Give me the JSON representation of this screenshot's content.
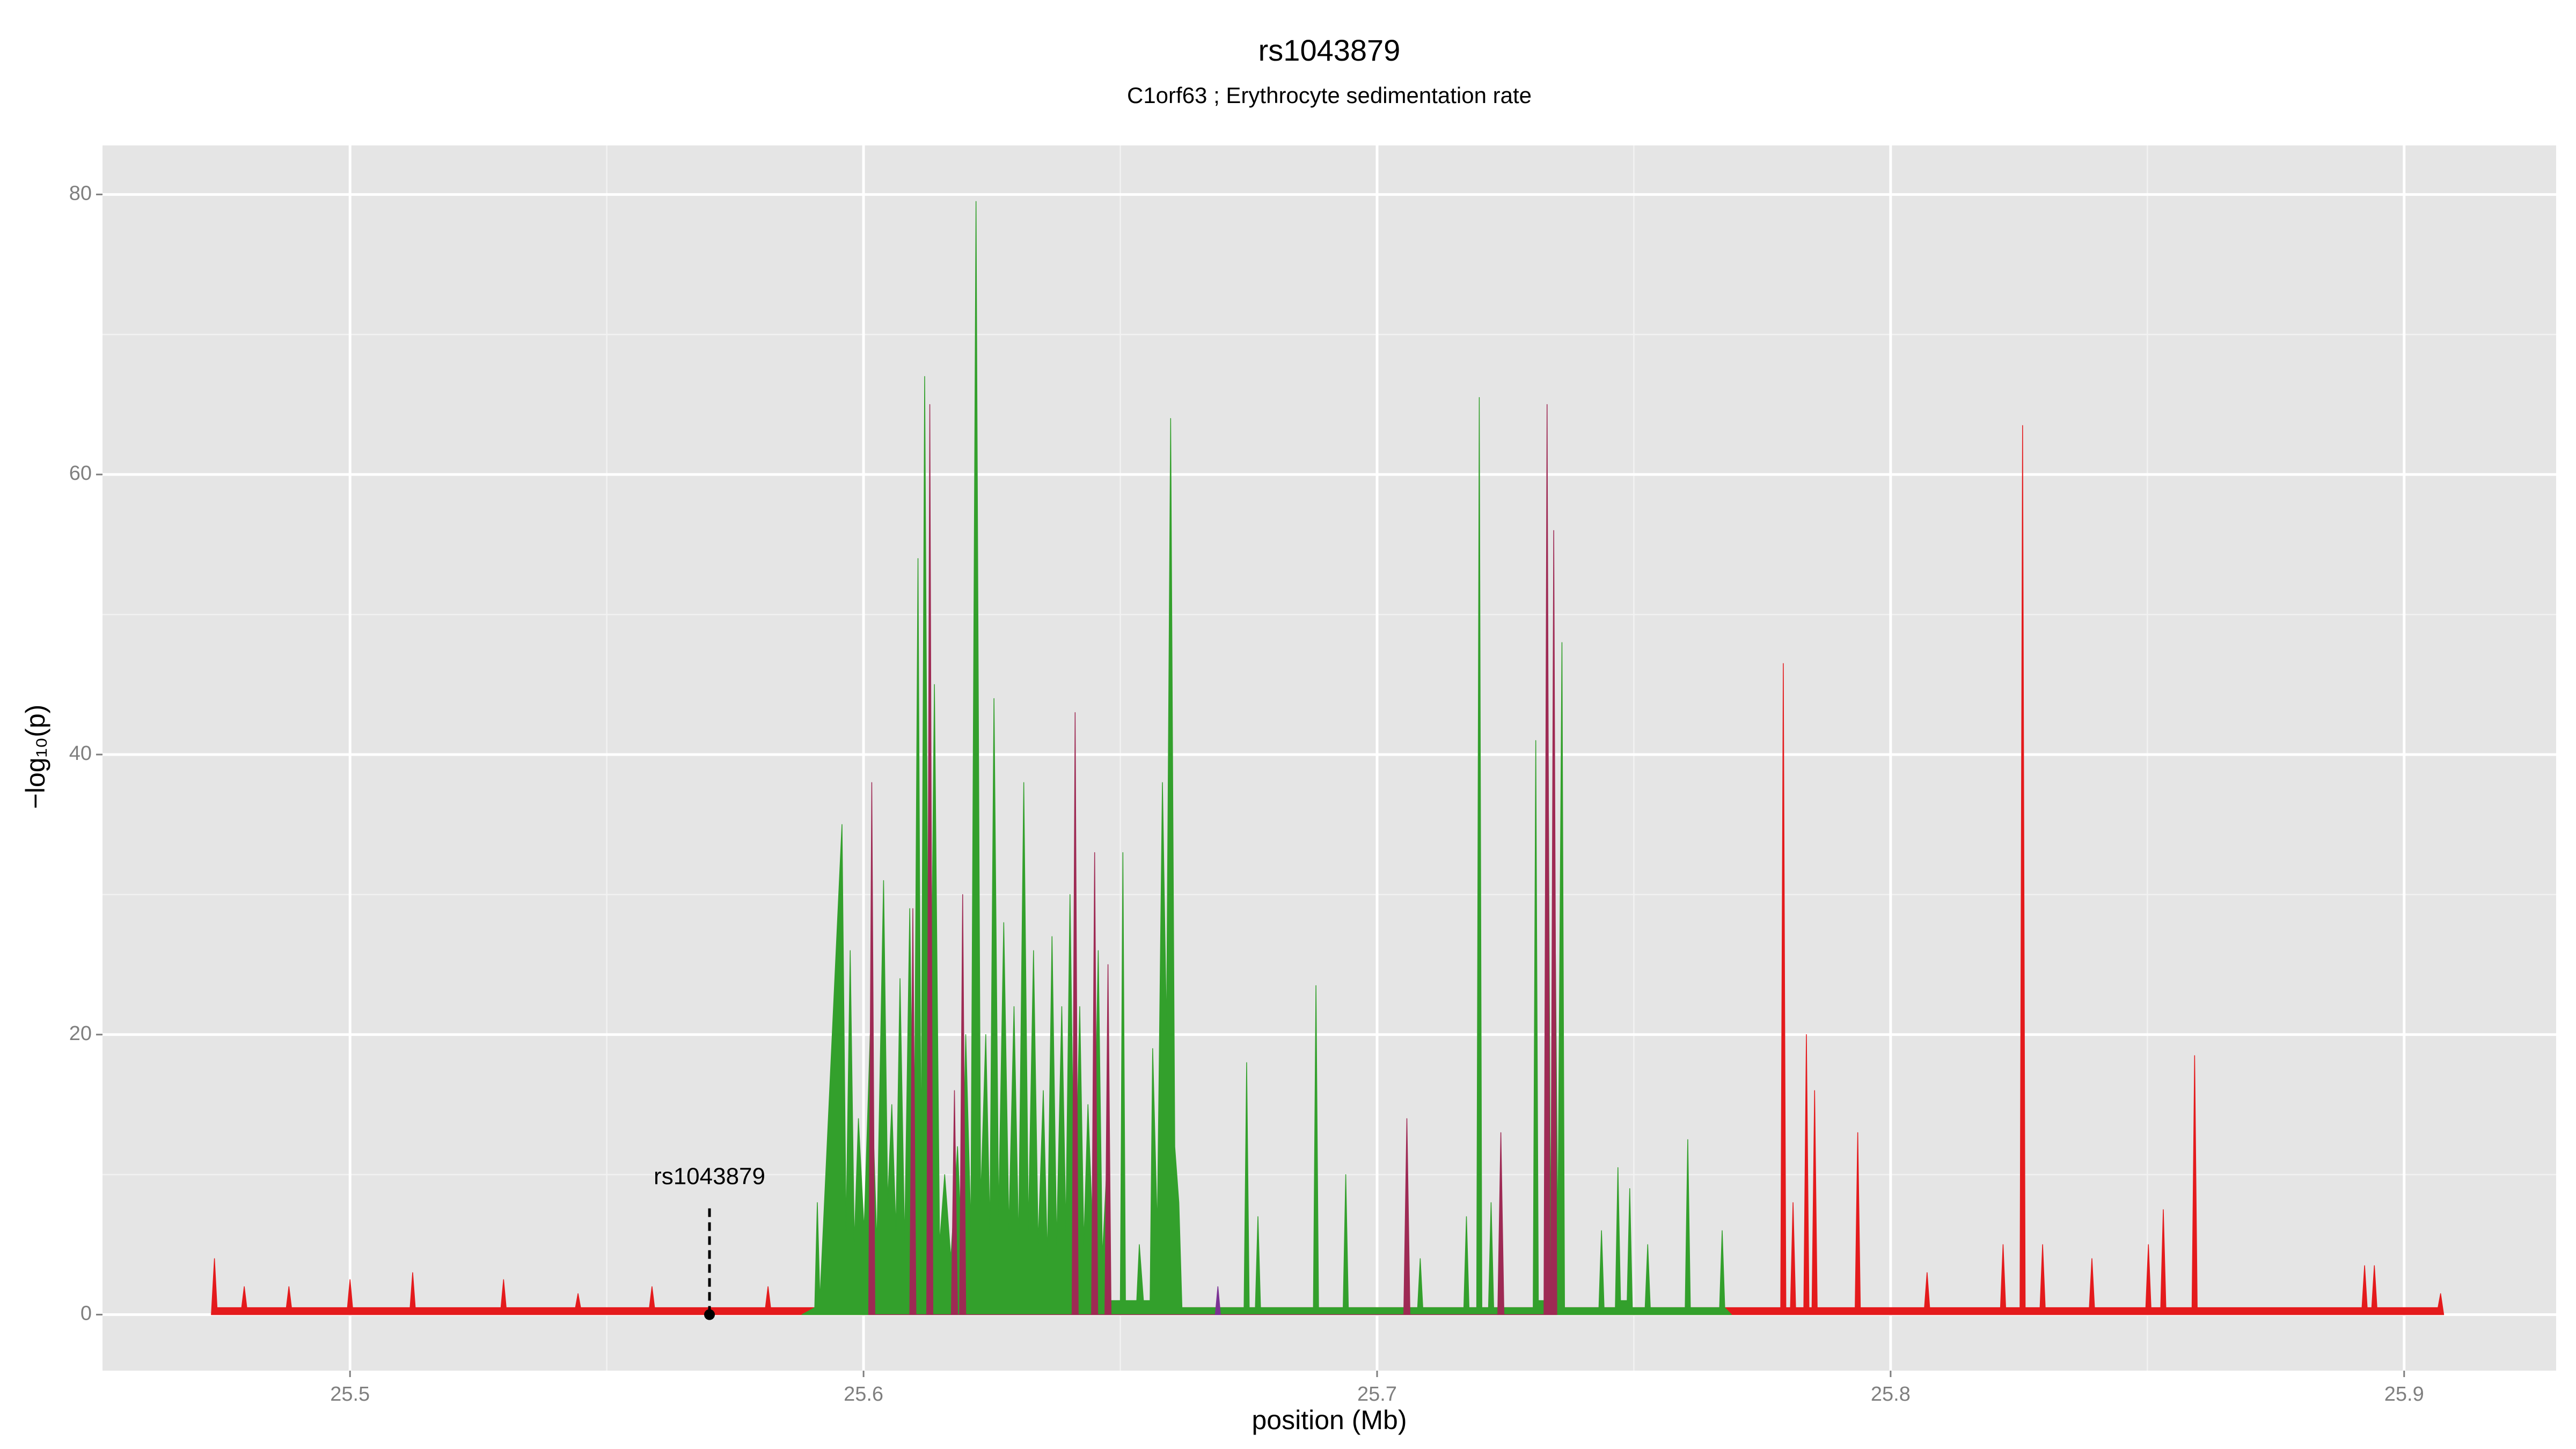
{
  "chart_data": {
    "type": "area",
    "title": "rs1043879",
    "subtitle": "C1orf63 ; Erythrocyte sedimentation rate",
    "xlabel": "position (Mb)",
    "ylabel": "−log₁₀(p)",
    "xlim": [
      25.4518,
      25.9296
    ],
    "ylim": [
      -4,
      83.5
    ],
    "xticks": [
      25.5,
      25.6,
      25.7,
      25.8,
      25.9
    ],
    "yticks": [
      0,
      20,
      40,
      60,
      80
    ],
    "xminor": [
      25.55,
      25.65,
      25.75,
      25.85
    ],
    "yminor": [
      10,
      30,
      50,
      70
    ],
    "grid": true,
    "series": [
      {
        "color": "#e41a1c",
        "x": [
          25.473,
          25.4736,
          25.4741,
          25.4789,
          25.4794,
          25.4799,
          25.4876,
          25.4881,
          25.4886,
          25.4995,
          25.5,
          25.5005,
          25.5117,
          25.5122,
          25.5127,
          25.5294,
          25.5299,
          25.5304,
          25.5439,
          25.5444,
          25.5449,
          25.5583,
          25.5588,
          25.5593,
          25.5809,
          25.5814,
          25.5819,
          25.7786,
          25.7791,
          25.7796,
          25.7805,
          25.781,
          25.7815,
          25.7831,
          25.7836,
          25.7841,
          25.7847,
          25.7852,
          25.7857,
          25.7931,
          25.7936,
          25.7941,
          25.8066,
          25.8071,
          25.8076,
          25.8214,
          25.8219,
          25.8224,
          25.8252,
          25.8257,
          25.8262,
          25.8291,
          25.8296,
          25.8301,
          25.8387,
          25.8392,
          25.8397,
          25.8497,
          25.8502,
          25.8507,
          25.8526,
          25.8531,
          25.8536,
          25.8587,
          25.8592,
          25.8597,
          25.8918,
          25.8923,
          25.8928,
          25.8937,
          25.8942,
          25.8947,
          25.9066,
          25.9071,
          25.9077
        ],
        "values": [
          0,
          4,
          0.5,
          0.5,
          2,
          0.5,
          0.5,
          2,
          0.5,
          0.5,
          2.5,
          0.5,
          0.5,
          3,
          0.5,
          0.5,
          2.5,
          0.5,
          0.5,
          1.5,
          0.5,
          0.5,
          2,
          0.5,
          0.5,
          2,
          0.5,
          0.5,
          46.5,
          0.5,
          0.5,
          8,
          0.5,
          0.5,
          20,
          0.5,
          0.5,
          16,
          0.5,
          0.5,
          13,
          0.5,
          0.5,
          3,
          0.5,
          0.5,
          5,
          0.5,
          0.5,
          63.5,
          0.5,
          0.5,
          5,
          0.5,
          0.5,
          4,
          0.5,
          0.5,
          5,
          0.5,
          0.5,
          7.5,
          0.5,
          0.5,
          18.5,
          0.5,
          0.5,
          3.5,
          0.5,
          0.5,
          3.5,
          0.5,
          0.5,
          1.5,
          0
        ]
      },
      {
        "color": "#33a02c",
        "x": [
          25.588,
          25.5905,
          25.591,
          25.5915,
          25.5958,
          25.5966,
          25.5974,
          25.5982,
          25.599,
          25.6001,
          25.6013,
          25.6026,
          25.6039,
          25.6047,
          25.6055,
          25.6063,
          25.6071,
          25.608,
          25.609,
          25.6098,
          25.6106,
          25.6112,
          25.6119,
          25.6128,
          25.6138,
          25.6148,
          25.6158,
          25.617,
          25.6183,
          25.6191,
          25.6199,
          25.6209,
          25.6219,
          25.6228,
          25.6238,
          25.6246,
          25.6254,
          25.6263,
          25.6273,
          25.6283,
          25.6293,
          25.6302,
          25.6312,
          25.6321,
          25.6331,
          25.634,
          25.635,
          25.6358,
          25.6367,
          25.6376,
          25.6386,
          25.6394,
          25.6402,
          25.6411,
          25.6421,
          25.6429,
          25.6437,
          25.6447,
          25.6457,
          25.6465,
          25.6473,
          25.648,
          25.65,
          25.6505,
          25.651,
          25.6532,
          25.6537,
          25.6545,
          25.6558,
          25.6563,
          25.6572,
          25.6582,
          25.659,
          25.6598,
          25.6606,
          25.6614,
          25.662,
          25.6741,
          25.6746,
          25.6751,
          25.6763,
          25.6768,
          25.6773,
          25.6876,
          25.6881,
          25.6886,
          25.6934,
          25.6939,
          25.6944,
          25.7079,
          25.7084,
          25.7089,
          25.7169,
          25.7174,
          25.7179,
          25.7194,
          25.7199,
          25.7204,
          25.7217,
          25.7222,
          25.7227,
          25.7304,
          25.7309,
          25.7314,
          25.7326,
          25.7331,
          25.7338,
          25.7344,
          25.7352,
          25.736,
          25.7365,
          25.7432,
          25.7437,
          25.7442,
          25.7464,
          25.7469,
          25.7474,
          25.7487,
          25.7492,
          25.7497,
          25.7522,
          25.7527,
          25.7532,
          25.76,
          25.7605,
          25.761,
          25.7667,
          25.7672,
          25.7677,
          25.769
        ],
        "values": [
          0,
          0.5,
          8,
          1,
          35,
          6,
          26,
          5,
          14,
          6,
          20,
          5,
          31,
          8,
          15,
          6,
          24,
          5,
          29,
          6,
          54,
          10,
          67,
          8,
          45,
          5,
          10,
          4,
          12,
          5,
          20,
          6,
          79.5,
          8,
          20,
          6,
          44,
          7,
          28,
          6,
          22,
          5,
          38,
          6,
          26,
          5,
          16,
          4,
          27,
          5,
          22,
          6,
          30,
          5,
          22,
          5,
          15,
          5,
          26,
          4,
          10,
          1,
          1,
          33,
          1,
          1,
          5,
          1,
          1,
          19,
          6,
          38,
          20,
          64,
          12,
          8,
          0.5,
          0.5,
          18,
          0.5,
          0.5,
          7,
          0.5,
          0.5,
          23.5,
          0.5,
          0.5,
          10,
          0.5,
          0.5,
          4,
          0.5,
          0.5,
          7,
          0.5,
          0.5,
          65.5,
          0.5,
          0.5,
          8,
          0.5,
          0.5,
          41,
          1,
          1,
          55,
          5,
          40,
          5,
          48,
          0.5,
          0.5,
          6,
          0.5,
          0.5,
          10.5,
          1,
          1,
          9,
          0.5,
          0.5,
          5,
          0.5,
          0.5,
          12.5,
          0.5,
          0.5,
          6,
          0.5,
          0
        ]
      },
      {
        "color": "#9e2a54",
        "x": [
          25.601,
          25.6016,
          25.6022,
          25.609,
          25.6096,
          25.6102,
          25.6123,
          25.6129,
          25.6135,
          25.6171,
          25.6177,
          25.6183,
          25.6187,
          25.6193,
          25.6199,
          25.6406,
          25.6412,
          25.6418,
          25.6444,
          25.645,
          25.6456,
          25.647,
          25.6476,
          25.6482,
          25.7052,
          25.7058,
          25.7064,
          25.7235,
          25.7241,
          25.7247,
          25.7325,
          25.7331,
          25.7337,
          25.7338,
          25.7344,
          25.735
        ],
        "values": [
          0,
          38,
          0,
          0,
          29,
          0,
          0,
          65,
          0,
          0,
          16,
          0,
          0,
          30,
          0,
          0,
          43,
          0,
          0,
          33,
          0,
          0,
          25,
          0,
          0,
          14,
          0,
          0,
          13,
          0,
          0,
          65,
          0,
          0,
          56,
          0
        ]
      },
      {
        "color": "#7b3294",
        "x": [
          25.6685,
          25.669,
          25.6695
        ],
        "values": [
          0,
          2,
          0
        ]
      }
    ],
    "annotations": [
      {
        "text": "rs1043879",
        "x": 25.57,
        "y": 0
      }
    ]
  }
}
